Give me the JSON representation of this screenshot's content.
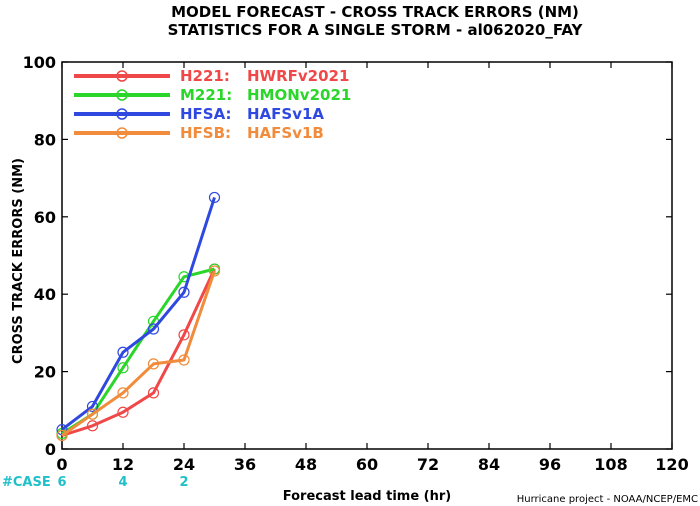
{
  "chart_data": {
    "type": "line",
    "title": "MODEL FORECAST - CROSS TRACK ERRORS (NM)",
    "subtitle": "STATISTICS FOR A SINGLE STORM - al062020_FAY",
    "xlabel": "Forecast lead time (hr)",
    "ylabel": "CROSS TRACK ERRORS (NM)",
    "xlim": [
      0,
      120
    ],
    "ylim": [
      0,
      100
    ],
    "x_ticks": [
      0,
      12,
      24,
      36,
      48,
      60,
      72,
      84,
      96,
      108,
      120
    ],
    "y_ticks": [
      0,
      20,
      40,
      60,
      80,
      100
    ],
    "grid": false,
    "legend_position": "top-left",
    "series": [
      {
        "name": "H221:",
        "model": "HWRFv2021",
        "color": "#f04848",
        "x": [
          0,
          6,
          12,
          18,
          24,
          30
        ],
        "values": [
          3.5,
          6,
          9.5,
          14.5,
          29.5,
          46.5
        ]
      },
      {
        "name": "M221:",
        "model": "HMONv2021",
        "color": "#2ad62a",
        "x": [
          0,
          6,
          12,
          18,
          24,
          30
        ],
        "values": [
          4,
          9,
          21,
          33,
          44.5,
          46.5
        ]
      },
      {
        "name": "HFSA:",
        "model": "HAFSv1A",
        "color": "#2f49e0",
        "x": [
          0,
          6,
          12,
          18,
          24,
          30
        ],
        "values": [
          5,
          11,
          25,
          31,
          40.5,
          65
        ]
      },
      {
        "name": "HFSB:",
        "model": "HAFSv1B",
        "color": "#f08c3c",
        "x": [
          0,
          6,
          12,
          18,
          24,
          30
        ],
        "values": [
          3.5,
          9,
          14.5,
          22,
          23,
          46
        ]
      }
    ],
    "cases": {
      "label": "#CASE",
      "color": "#20c0c8",
      "x": [
        0,
        12,
        24
      ],
      "values": [
        6,
        4,
        2
      ]
    },
    "credit": "Hurricane project - NOAA/NCEP/EMC"
  }
}
